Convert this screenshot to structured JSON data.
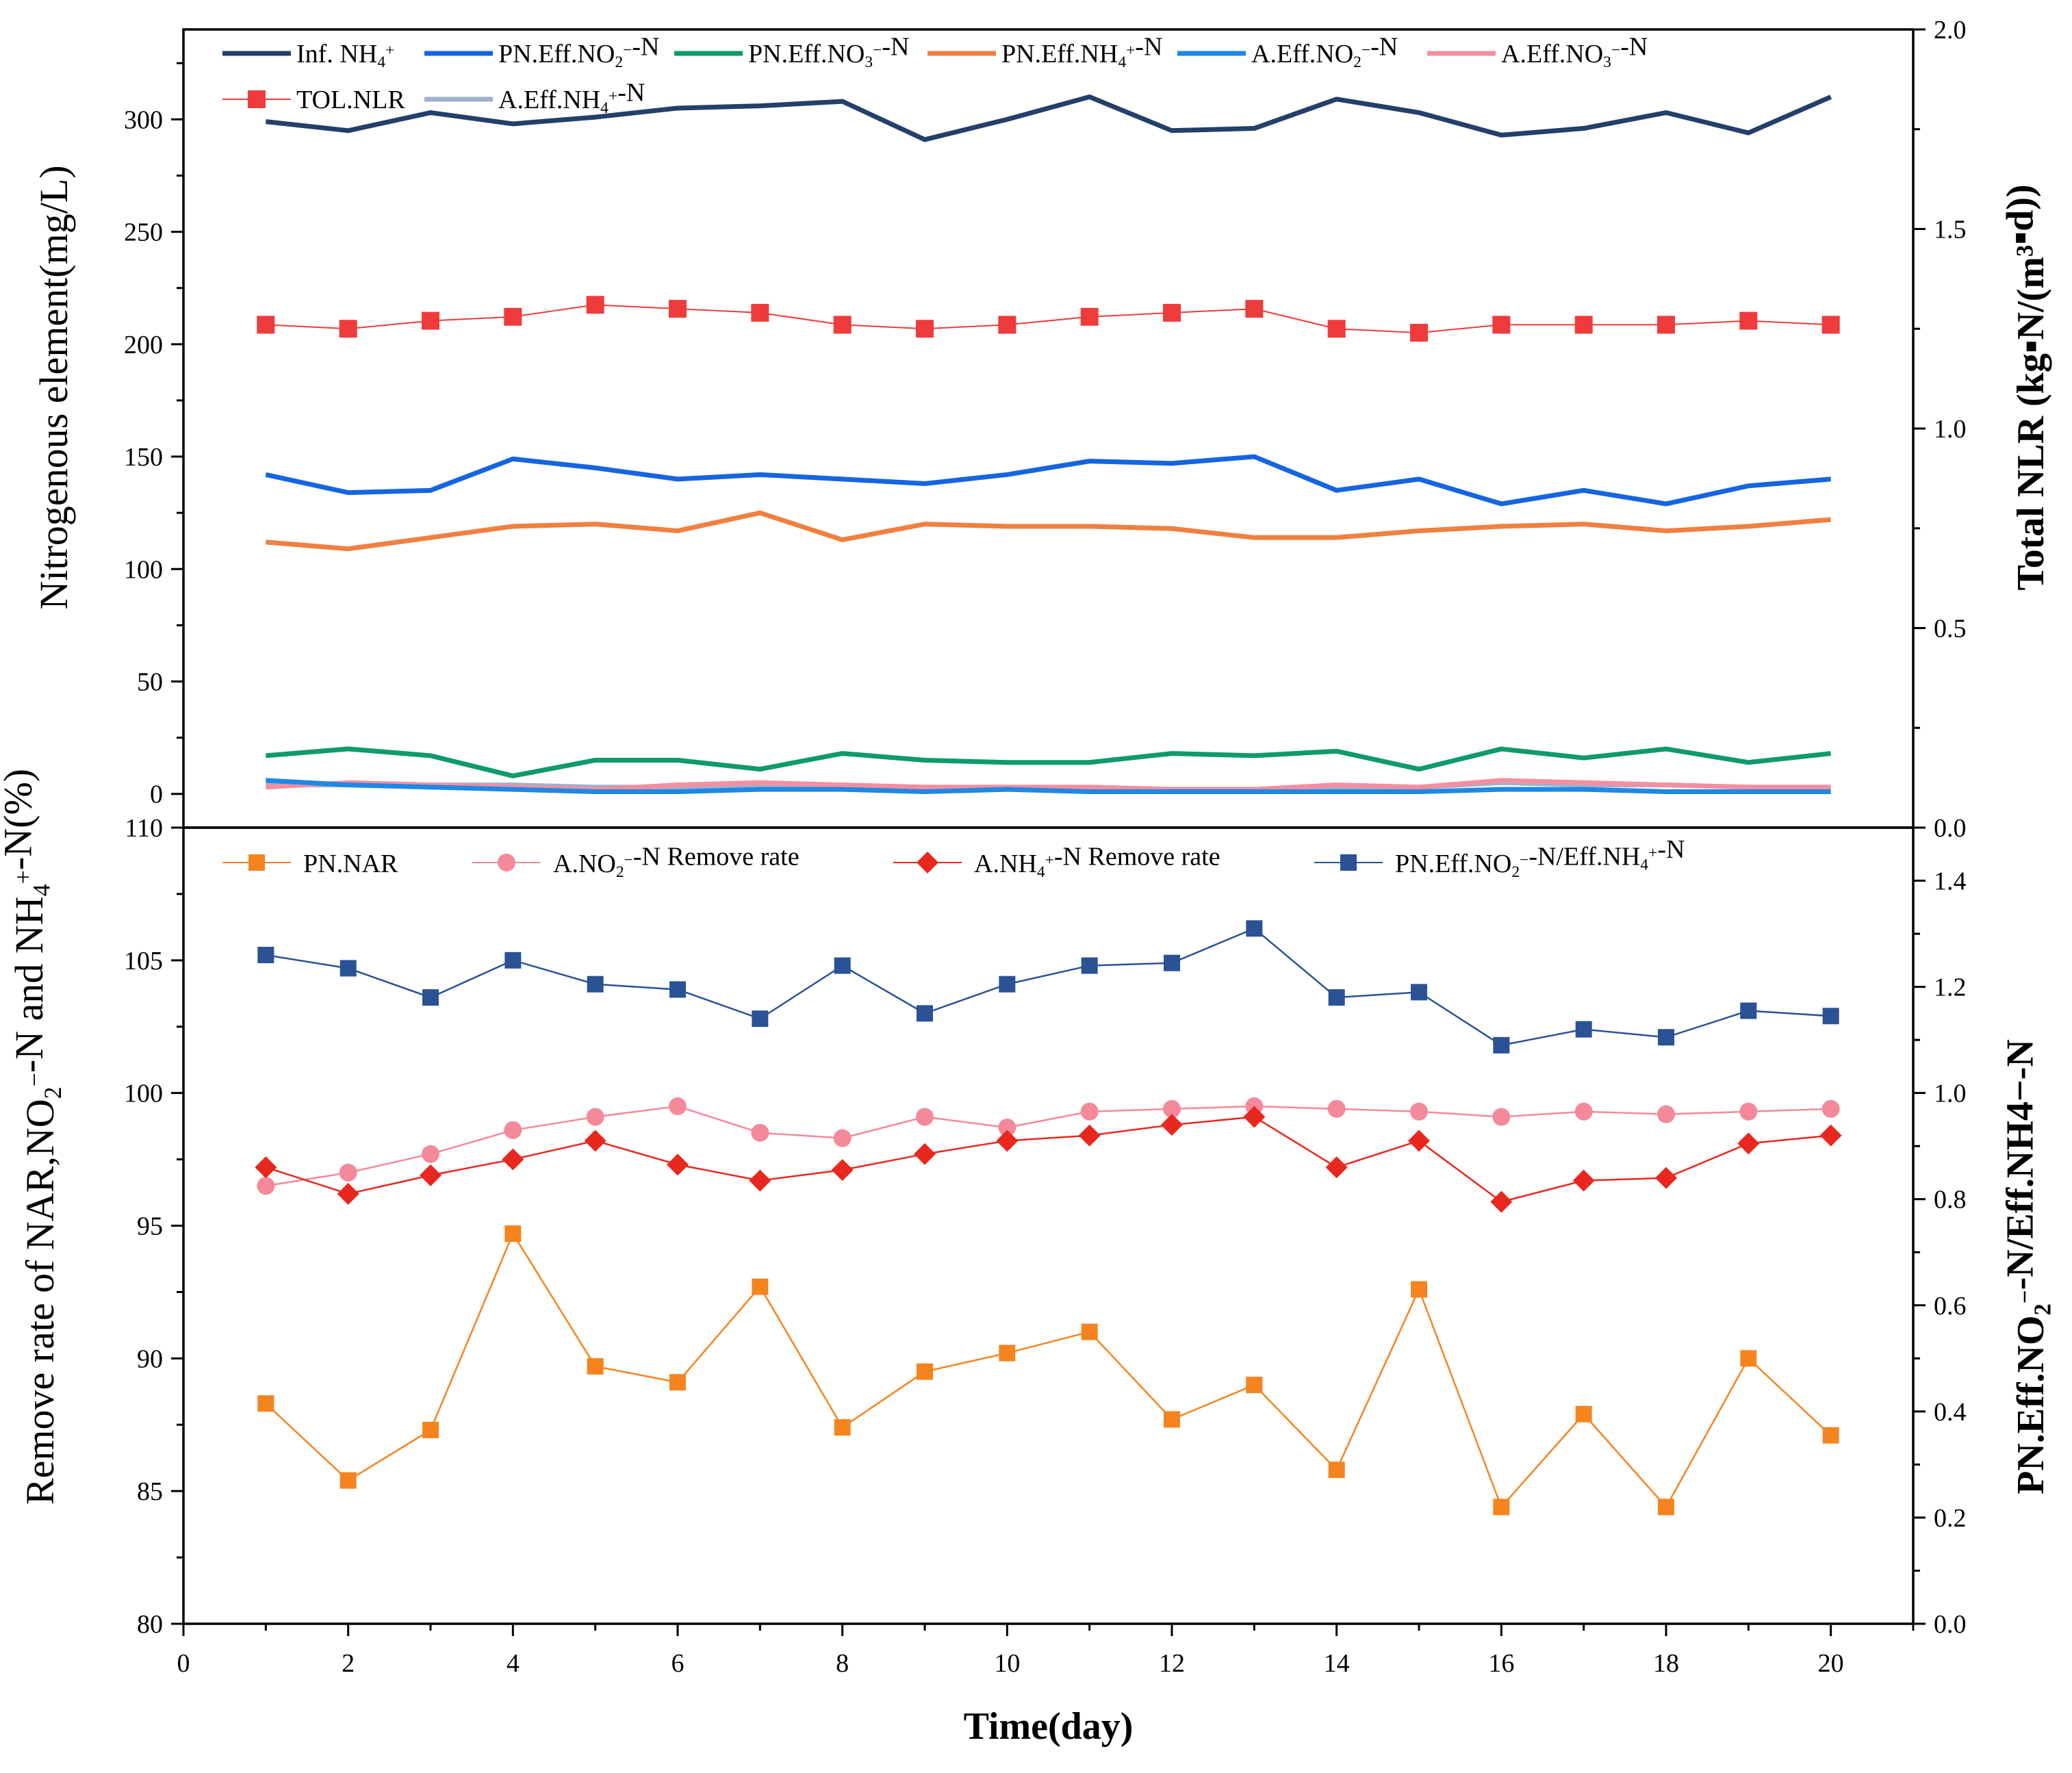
{
  "chart_data": [
    {
      "type": "line",
      "panel": "top",
      "x_label": "Time(day)",
      "y_label": "Nitrogenous element(mg/L)",
      "y2_label": "Total NLR (kg▪N/(m³▪d))",
      "x": [
        1,
        2,
        3,
        4,
        5,
        6,
        7,
        8,
        9,
        10,
        11,
        12,
        13,
        14,
        15,
        16,
        17,
        18,
        19,
        20
      ],
      "x_ticks": [
        0,
        2,
        4,
        6,
        8,
        10,
        12,
        14,
        16,
        18,
        20
      ],
      "ylim": [
        -15,
        340
      ],
      "y_ticks": [
        0,
        50,
        100,
        150,
        200,
        250,
        300
      ],
      "y2lim": [
        0,
        2.0
      ],
      "y2_ticks": [
        "0.0",
        "0.5",
        "1.0",
        "1.5",
        "2.0"
      ],
      "series": [
        {
          "id": "inf_nh4",
          "name": "Inf. NH4+",
          "color": "#253f6b",
          "axis": "left",
          "style": "thick-line",
          "values": [
            299,
            295,
            303,
            298,
            301,
            305,
            306,
            308,
            291,
            300,
            310,
            295,
            296,
            309,
            303,
            293,
            296,
            303,
            294,
            310
          ]
        },
        {
          "id": "pn_no2",
          "name": "PN.Eff.NO2−-N",
          "color": "#1565e0",
          "axis": "left",
          "style": "thick-line",
          "values": [
            142,
            134,
            135,
            149,
            145,
            140,
            142,
            140,
            138,
            142,
            148,
            147,
            150,
            135,
            140,
            129,
            135,
            129,
            137,
            140
          ]
        },
        {
          "id": "pn_no3",
          "name": "PN.Eff.NO3−-N",
          "color": "#0f9a6e",
          "axis": "left",
          "style": "thick-line",
          "values": [
            17,
            20,
            17,
            8,
            15,
            15,
            11,
            18,
            15,
            14,
            14,
            18,
            17,
            19,
            11,
            20,
            16,
            20,
            14,
            18
          ]
        },
        {
          "id": "pn_nh4",
          "name": "PN.Eff.NH4+-N",
          "color": "#f08040",
          "axis": "left",
          "style": "thick-line",
          "values": [
            112,
            109,
            114,
            119,
            120,
            117,
            125,
            113,
            120,
            119,
            119,
            118,
            114,
            114,
            117,
            119,
            120,
            117,
            119,
            122
          ]
        },
        {
          "id": "a_no2",
          "name": "A.Eff.NO2−-N",
          "color": "#1e88e5",
          "axis": "left",
          "style": "thick-line",
          "values": [
            6,
            4,
            3,
            2,
            1,
            1,
            2,
            2,
            1,
            2,
            1,
            1,
            1,
            1,
            1,
            2,
            2,
            1,
            1,
            1
          ]
        },
        {
          "id": "a_no3",
          "name": "A.Eff.NO3−-N",
          "color": "#f48fa0",
          "axis": "left",
          "style": "thick-line",
          "values": [
            3,
            5,
            4,
            3,
            2,
            4,
            5,
            4,
            3,
            3,
            3,
            2,
            2,
            4,
            3,
            6,
            5,
            4,
            3,
            3
          ]
        },
        {
          "id": "tol_nlr",
          "name": "TOL.NLR",
          "color": "#ef3b3b",
          "axis": "right",
          "style": "square-markers",
          "values": [
            1.26,
            1.25,
            1.27,
            1.28,
            1.31,
            1.3,
            1.29,
            1.26,
            1.25,
            1.26,
            1.28,
            1.29,
            1.3,
            1.25,
            1.24,
            1.26,
            1.26,
            1.26,
            1.27,
            1.26
          ]
        },
        {
          "id": "a_nh4",
          "name": "A.Eff.NH4+-N",
          "color": "#9fb1cc",
          "axis": "left",
          "style": "thick-line",
          "values": [
            4,
            4,
            4,
            4,
            3,
            3,
            3,
            3,
            3,
            3,
            3,
            2,
            2,
            3,
            3,
            5,
            4,
            4,
            3,
            3
          ]
        }
      ]
    },
    {
      "type": "line",
      "panel": "bottom",
      "x_label": "Time(day)",
      "y_label": "Remove rate of NAR,NO2−-N and NH4+-N(%)",
      "y2_label": "PN.Eff.NO2−-N/Eff.NH4−-N",
      "x": [
        1,
        2,
        3,
        4,
        5,
        6,
        7,
        8,
        9,
        10,
        11,
        12,
        13,
        14,
        15,
        16,
        17,
        18,
        19,
        20
      ],
      "x_ticks": [
        0,
        2,
        4,
        6,
        8,
        10,
        12,
        14,
        16,
        18,
        20
      ],
      "ylim": [
        80,
        110
      ],
      "y_ticks": [
        80,
        85,
        90,
        95,
        100,
        105,
        110
      ],
      "y2lim": [
        0.0,
        1.5
      ],
      "y2_ticks": [
        "0.0",
        "0.2",
        "0.4",
        "0.6",
        "0.8",
        "1.0",
        "1.2",
        "1.4"
      ],
      "series": [
        {
          "id": "pn_nar",
          "name": "PN.NAR",
          "color": "#f5841f",
          "axis": "left",
          "marker": "square",
          "values": [
            88.3,
            85.4,
            87.3,
            94.7,
            89.7,
            89.1,
            92.7,
            87.4,
            89.5,
            90.2,
            91.0,
            87.7,
            89.0,
            85.8,
            92.6,
            84.4,
            87.9,
            84.4,
            90.0,
            87.1
          ]
        },
        {
          "id": "a_no2_rr",
          "name": "A.NO2−-N Remove rate",
          "color": "#f4899a",
          "axis": "left",
          "marker": "circle",
          "values": [
            96.5,
            97.0,
            97.7,
            98.6,
            99.1,
            99.5,
            98.5,
            98.3,
            99.1,
            98.7,
            99.3,
            99.4,
            99.5,
            99.4,
            99.3,
            99.1,
            99.3,
            99.2,
            99.3,
            99.4
          ]
        },
        {
          "id": "a_nh4_rr",
          "name": "A.NH4+-N Remove rate",
          "color": "#e8281f",
          "axis": "left",
          "marker": "diamond",
          "values": [
            97.2,
            96.2,
            96.9,
            97.5,
            98.2,
            97.3,
            96.7,
            97.1,
            97.7,
            98.2,
            98.4,
            98.8,
            99.1,
            97.2,
            98.2,
            95.9,
            96.7,
            96.8,
            98.1,
            98.4
          ]
        },
        {
          "id": "pn_ratio",
          "name": "PN.Eff.NO2−-N/Eff.NH4+-N",
          "color": "#2a5294",
          "axis": "right",
          "marker": "square",
          "values": [
            1.26,
            1.235,
            1.18,
            1.25,
            1.205,
            1.195,
            1.14,
            1.24,
            1.15,
            1.205,
            1.24,
            1.245,
            1.31,
            1.18,
            1.19,
            1.09,
            1.12,
            1.105,
            1.155,
            1.145
          ]
        }
      ]
    }
  ]
}
